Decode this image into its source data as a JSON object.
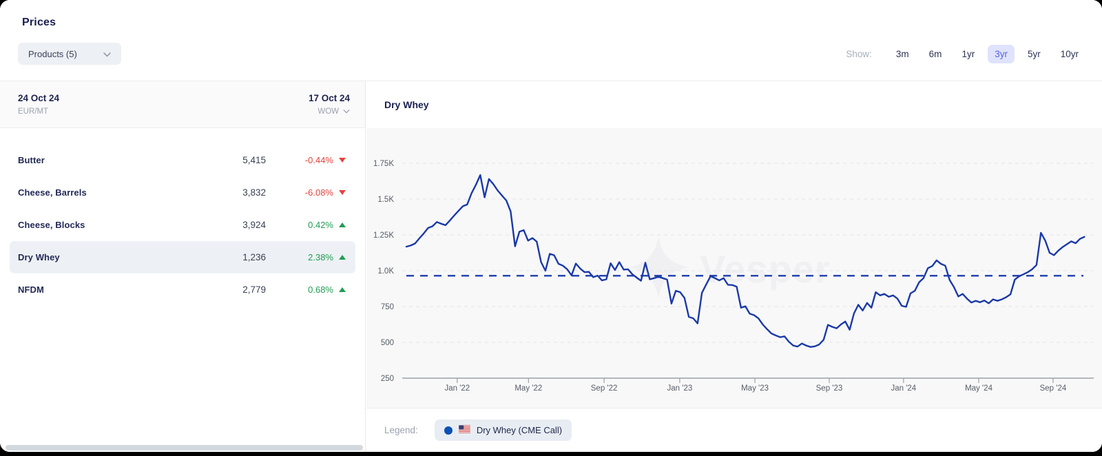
{
  "page": {
    "title": "Prices"
  },
  "toolbar": {
    "products_label": "Products (5)",
    "show_label": "Show:",
    "ranges": [
      "3m",
      "6m",
      "1yr",
      "3yr",
      "5yr",
      "10yr"
    ],
    "active_range": "3yr"
  },
  "table": {
    "header": {
      "date_left": "24 Oct 24",
      "unit": "EUR/MT",
      "date_right": "17 Oct 24",
      "wow_label": "WOW"
    },
    "rows": [
      {
        "name": "Butter",
        "value": "5,415",
        "change": "-0.44%",
        "direction": "down",
        "selected": false
      },
      {
        "name": "Cheese, Barrels",
        "value": "3,832",
        "change": "-6.08%",
        "direction": "down",
        "selected": false
      },
      {
        "name": "Cheese, Blocks",
        "value": "3,924",
        "change": "0.42%",
        "direction": "up",
        "selected": false
      },
      {
        "name": "Dry Whey",
        "value": "1,236",
        "change": "2.38%",
        "direction": "up",
        "selected": true
      },
      {
        "name": "NFDM",
        "value": "2,779",
        "change": "0.68%",
        "direction": "up",
        "selected": false
      }
    ]
  },
  "chart": {
    "title": "Dry Whey"
  },
  "legend": {
    "label": "Legend:",
    "series_label": "Dry Whey (CME Call)",
    "flag": "us-flag"
  },
  "watermark": "Vesper",
  "colors": {
    "line_blue": "#1a39a8",
    "reference_blue": "#1c3cab",
    "legend_dot_blue": "#0b51b5",
    "positive_green": "#1f9d53",
    "negative_red": "#e5433f",
    "active_range_bg": "#dfe3fb",
    "active_range_text": "#5663e9",
    "grid_gray": "#e3e3e6",
    "axis_gray": "#9aa1a8"
  },
  "chart_data": {
    "type": "line",
    "title": "Dry Whey",
    "unit": "EUR/MT",
    "frequency": "weekly",
    "x_start": "Oct 2021",
    "x_end": "24 Oct 2024",
    "ylim": [
      250,
      1750
    ],
    "grid": "dashed-horizontal",
    "legend_position": "bottom",
    "yticks": [
      {
        "label": "1.75K",
        "value": 1750
      },
      {
        "label": "1.5K",
        "value": 1500
      },
      {
        "label": "1.25K",
        "value": 1250
      },
      {
        "label": "1.0K",
        "value": 1000
      },
      {
        "label": "750",
        "value": 750
      },
      {
        "label": "500",
        "value": 500
      },
      {
        "label": "250",
        "value": 250
      }
    ],
    "xticks": [
      {
        "label": "Jan '22",
        "week": 11.7
      },
      {
        "label": "May '22",
        "week": 28.1
      },
      {
        "label": "Sep '22",
        "week": 45.5
      },
      {
        "label": "Jan '23",
        "week": 62.9
      },
      {
        "label": "May '23",
        "week": 80.2
      },
      {
        "label": "Sep '23",
        "week": 97.3
      },
      {
        "label": "Jan '24",
        "week": 114.4
      },
      {
        "label": "May '24",
        "week": 131.7
      },
      {
        "label": "Sep '24",
        "week": 148.8
      }
    ],
    "reference_line": {
      "value": 965,
      "style": "dashed"
    },
    "series": [
      {
        "name": "Dry Whey (CME Call)",
        "values": [
          1168,
          1176,
          1190,
          1226,
          1260,
          1298,
          1310,
          1340,
          1328,
          1318,
          1350,
          1385,
          1418,
          1450,
          1462,
          1540,
          1600,
          1668,
          1512,
          1640,
          1605,
          1560,
          1525,
          1490,
          1414,
          1170,
          1272,
          1283,
          1210,
          1228,
          1203,
          1060,
          1000,
          1118,
          1108,
          1048,
          1035,
          1010,
          968,
          1050,
          1015,
          990,
          992,
          955,
          966,
          932,
          940,
          1052,
          1005,
          1060,
          1008,
          1010,
          975,
          952,
          930,
          1056,
          940,
          948,
          958,
          948,
          938,
          770,
          860,
          850,
          810,
          678,
          668,
          632,
          845,
          905,
          962,
          948,
          932,
          948,
          902,
          900,
          888,
          742,
          752,
          700,
          690,
          668,
          625,
          592,
          562,
          548,
          536,
          542,
          505,
          478,
          470,
          492,
          478,
          468,
          472,
          485,
          518,
          622,
          608,
          598,
          625,
          645,
          588,
          702,
          762,
          722,
          775,
          742,
          850,
          828,
          838,
          818,
          828,
          805,
          755,
          748,
          842,
          860,
          920,
          948,
          1018,
          1032,
          1072,
          1048,
          1035,
          935,
          885,
          820,
          838,
          805,
          778,
          790,
          780,
          792,
          772,
          800,
          790,
          800,
          815,
          835,
          938,
          961,
          975,
          990,
          1010,
          1040,
          1265,
          1210,
          1125,
          1108,
          1140,
          1165,
          1185,
          1205,
          1192,
          1222,
          1236
        ]
      }
    ]
  }
}
